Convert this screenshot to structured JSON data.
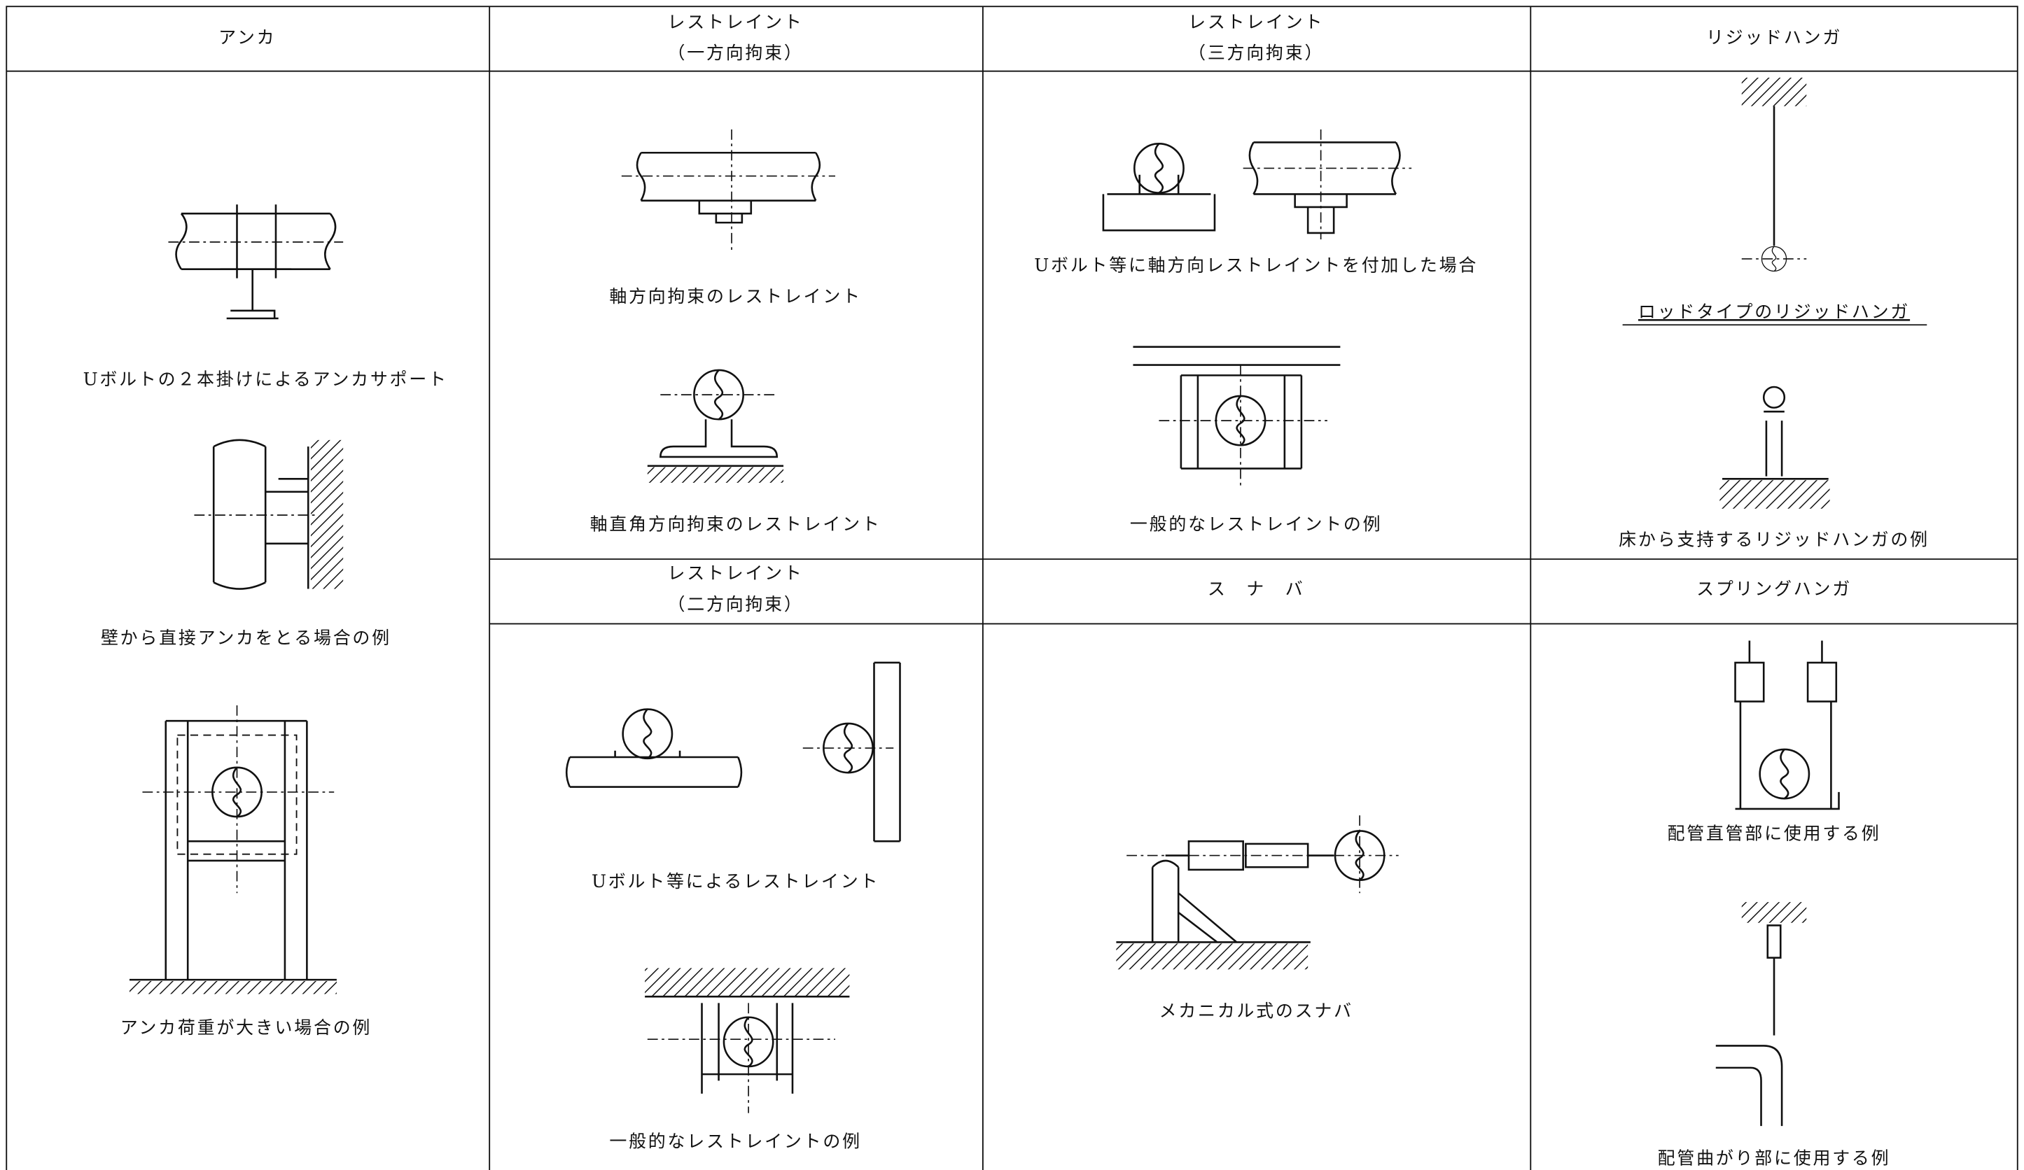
{
  "header_row": [
    [
      "アンカ"
    ],
    [
      "レストレイント",
      "（一方向拘束）"
    ],
    [
      "レストレイント",
      "（三方向拘束）"
    ],
    [
      "リジッドハンガ"
    ]
  ],
  "second_header_row": [
    [
      "レストレイント",
      "（二方向拘束）"
    ],
    [
      "ス　ナ　バ"
    ],
    [
      "スプリングハンガ"
    ]
  ],
  "captions": {
    "anchor": [
      "Uボルトの２本掛けによるアンカサポート",
      "壁から直接アンカをとる場合の例",
      "アンカ荷重が大きい場合の例"
    ],
    "restraint_one": [
      "軸方向拘束のレストレイント",
      "軸直角方向拘束のレストレイント"
    ],
    "restraint_three": [
      "Uボルト等に軸方向レストレイントを付加した場合",
      "一般的なレストレイントの例"
    ],
    "rigid_hanger": [
      "ロッドタイプのリジッドハンガ",
      "床から支持するリジッドハンガの例"
    ],
    "restraint_two": [
      "Uボルト等によるレストレイント",
      "一般的なレストレイントの例"
    ],
    "snubber": [
      "メカニカル式のスナバ"
    ],
    "spring_hanger": [
      "配管直管部に使用する例",
      "配管曲がり部に使用する例"
    ]
  }
}
